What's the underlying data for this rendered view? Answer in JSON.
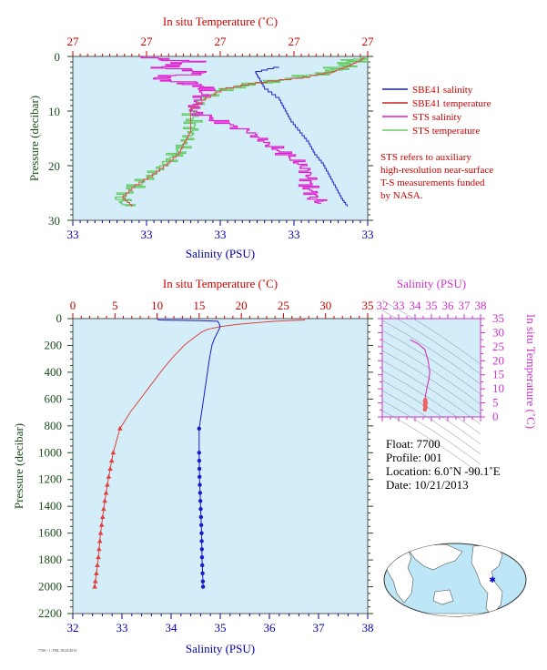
{
  "colors": {
    "plot_bg": "#d4eef9",
    "temp_axis": "#cc0000",
    "sal_axis": "#0000aa",
    "pressure_axis": "#1a4d1a",
    "sbe_salinity": "#1a1acc",
    "sbe_temperature": "#e04040",
    "sts_salinity": "#e020d0",
    "sts_temperature": "#66cc66",
    "ts_accent": "#cc33cc",
    "map_land": "#ffffff",
    "map_ocean": "#bde6f7"
  },
  "top_panel": {
    "temp_axis_title": "In situ Temperature (˚C)",
    "temp_ticks": [
      "27",
      "27",
      "27",
      "27",
      "27"
    ],
    "sal_axis_title": "Salinity (PSU)",
    "sal_ticks": [
      "33",
      "33",
      "33",
      "33",
      "33"
    ],
    "pressure_title": "Pressure (decibar)",
    "pressure_ticks": [
      "0",
      "10",
      "20",
      "30"
    ],
    "legend": [
      {
        "label": "SBE41 salinity",
        "color": "#1a1acc"
      },
      {
        "label": "SBE41 temperature",
        "color": "#cc2222"
      },
      {
        "label": "STS salinity",
        "color": "#e020d0"
      },
      {
        "label": "STS temperature",
        "color": "#66cc66"
      }
    ],
    "note_lines": [
      "STS refers to auxiliary",
      "high-resolution near-surface",
      "T-S measurements funded",
      "by NASA."
    ]
  },
  "bottom_panel": {
    "temp_axis_title": "In situ Temperature (˚C)",
    "temp_ticks": [
      "0",
      "5",
      "10",
      "15",
      "20",
      "25",
      "30",
      "35"
    ],
    "sal_axis_title": "Salinity (PSU)",
    "sal_ticks": [
      "32",
      "33",
      "34",
      "35",
      "36",
      "37",
      "38"
    ],
    "pressure_title": "Pressure (decibar)",
    "pressure_ticks": [
      "0",
      "200",
      "400",
      "600",
      "800",
      "1000",
      "1200",
      "1400",
      "1600",
      "1800",
      "2000",
      "2200"
    ]
  },
  "ts_panel": {
    "sal_axis_title": "Salinity (PSU)",
    "sal_ticks": [
      "32",
      "33",
      "34",
      "35",
      "36",
      "37",
      "38"
    ],
    "temp_axis_title": "In situ Temperature (˚C)",
    "temp_ticks": [
      "0",
      "5",
      "10",
      "15",
      "20",
      "25",
      "30",
      "35"
    ]
  },
  "float_info": {
    "float": "Float: 7700",
    "profile": "Profile: 001",
    "location": "Location: 6.0˚N -90.1˚E",
    "date": "Date: 10/21/2013"
  },
  "footer_small": "7700 / 1 / PM, 10/23/2013",
  "chart_data": [
    {
      "type": "line",
      "panel": "near-surface profile (0-30 dbar)",
      "ylabel": "Pressure (decibar)",
      "ylim": [
        30,
        0
      ],
      "grid": false,
      "legend_position": "right",
      "series": [
        {
          "name": "SBE41 salinity",
          "pressure": [
            2,
            3,
            4,
            6,
            8,
            10,
            12,
            14,
            16,
            18,
            20,
            22,
            24,
            26,
            27.5
          ],
          "x_frac": [
            0.7,
            0.62,
            0.63,
            0.65,
            0.7,
            0.72,
            0.74,
            0.77,
            0.8,
            0.82,
            0.85,
            0.87,
            0.89,
            0.91,
            0.93
          ]
        },
        {
          "name": "SBE41 temperature",
          "pressure": [
            0.3,
            1,
            2,
            3,
            4,
            5,
            6,
            8,
            10,
            12,
            14,
            16,
            18,
            20,
            22,
            24,
            26,
            27.5
          ],
          "x_frac": [
            0.99,
            0.97,
            0.93,
            0.88,
            0.78,
            0.62,
            0.52,
            0.45,
            0.4,
            0.4,
            0.4,
            0.38,
            0.36,
            0.32,
            0.27,
            0.21,
            0.17,
            0.2
          ]
        },
        {
          "name": "STS salinity",
          "pressure": [
            0,
            1,
            2,
            3,
            4,
            5,
            6,
            8,
            10,
            12,
            14,
            16,
            18,
            20,
            22,
            24,
            26,
            27
          ],
          "x_frac": [
            0.2,
            0.4,
            0.3,
            0.45,
            0.28,
            0.4,
            0.45,
            0.43,
            0.4,
            0.5,
            0.6,
            0.66,
            0.72,
            0.78,
            0.8,
            0.8,
            0.82,
            0.84
          ]
        },
        {
          "name": "STS temperature",
          "pressure": [
            0.2,
            1,
            2,
            3,
            4,
            5,
            6,
            8,
            10,
            12,
            14,
            16,
            18,
            20,
            22,
            24,
            26,
            27.5
          ],
          "x_frac": [
            0.99,
            0.95,
            0.91,
            0.86,
            0.76,
            0.62,
            0.52,
            0.44,
            0.4,
            0.41,
            0.4,
            0.38,
            0.35,
            0.31,
            0.26,
            0.21,
            0.16,
            0.18
          ]
        }
      ]
    },
    {
      "type": "line",
      "panel": "full profile (0-2200 dbar)",
      "ylabel": "Pressure (decibar)",
      "xlabel": "Salinity (PSU)",
      "ylim": [
        2200,
        0
      ],
      "temp_range": [
        0,
        35
      ],
      "sal_range": [
        32,
        38
      ],
      "series": [
        {
          "name": "Salinity (PSU)",
          "color": "#1a1acc",
          "pressure": [
            0,
            10,
            15,
            20,
            40,
            60,
            100,
            150,
            200,
            300,
            500,
            700,
            820,
            1000,
            1200,
            1400,
            1600,
            1800,
            1900,
            2000
          ],
          "values": [
            33.72,
            33.74,
            34.6,
            34.95,
            34.98,
            35.0,
            34.95,
            34.88,
            34.83,
            34.78,
            34.7,
            34.62,
            34.57,
            34.57,
            34.58,
            34.6,
            34.62,
            34.63,
            34.64,
            34.65
          ]
        },
        {
          "name": "In situ Temperature (˚C)",
          "color": "#e04040",
          "pressure": [
            0,
            10,
            20,
            40,
            60,
            80,
            100,
            150,
            200,
            300,
            400,
            500,
            600,
            700,
            820,
            1000,
            1200,
            1400,
            1600,
            1800,
            2000
          ],
          "values": [
            27.5,
            27.5,
            24,
            20,
            17.5,
            16.0,
            15.3,
            14.2,
            13.2,
            11.7,
            10.4,
            9.2,
            8.0,
            6.8,
            5.6,
            4.8,
            4.2,
            3.7,
            3.3,
            3.0,
            2.6
          ]
        }
      ],
      "sampled_pressures": [
        820,
        1000,
        1060,
        1120,
        1180,
        1240,
        1300,
        1360,
        1420,
        1480,
        1540,
        1600,
        1660,
        1720,
        1780,
        1840,
        1900,
        1960,
        2000
      ]
    },
    {
      "type": "line",
      "panel": "T-S diagram",
      "xlabel": "Salinity (PSU)",
      "ylabel": "In situ Temperature (˚C)",
      "xlim": [
        32,
        38
      ],
      "ylim": [
        0,
        35
      ],
      "series": [
        {
          "name": "T-S",
          "salinity": [
            33.7,
            34.2,
            34.6,
            34.8,
            34.9,
            34.85,
            34.75,
            34.65,
            34.6,
            34.62,
            34.65
          ],
          "temperature": [
            27.5,
            26.0,
            24.0,
            20.0,
            16.0,
            13.5,
            11.0,
            8.0,
            5.5,
            4.0,
            2.6
          ]
        }
      ]
    }
  ]
}
